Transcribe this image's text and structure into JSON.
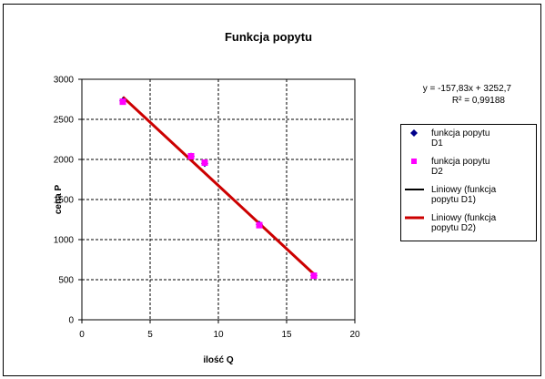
{
  "chart_data": {
    "type": "scatter",
    "title": "Funkcja popytu",
    "xlabel": "ilość Q",
    "ylabel": "cena P",
    "xlim": [
      0,
      20
    ],
    "ylim": [
      0,
      3000
    ],
    "x_ticks": [
      0,
      5,
      10,
      15,
      20
    ],
    "y_ticks": [
      0,
      500,
      1000,
      1500,
      2000,
      2500,
      3000
    ],
    "grid": "dashed",
    "legend_position": "right",
    "series": [
      {
        "name": "funkcja popytu D1",
        "marker": "diamond",
        "color": "#00008b",
        "x": [
          3,
          8,
          9,
          13,
          17
        ],
        "y": [
          2730,
          2040,
          1950,
          1190,
          550
        ]
      },
      {
        "name": "funkcja popytu D2",
        "marker": "square",
        "color": "#ff00ff",
        "x": [
          3,
          8,
          9,
          13,
          17
        ],
        "y": [
          2720,
          2040,
          1960,
          1180,
          550
        ]
      }
    ],
    "trendlines": [
      {
        "name": "Liniowy (funkcja popytu D1)",
        "color": "#000000",
        "slope": -157.83,
        "intercept": 3252.7,
        "x_range": [
          3,
          17
        ]
      },
      {
        "name": "Liniowy (funkcja popytu D2)",
        "color": "#cc0000",
        "slope": -157.83,
        "intercept": 3252.7,
        "x_range": [
          3,
          17
        ]
      }
    ],
    "annotations": {
      "equation": "y = -157,83x + 3252,7",
      "r_squared": "R² = 0,99188"
    },
    "legend": [
      {
        "lines": [
          "funkcja popytu",
          "D1"
        ]
      },
      {
        "lines": [
          "funkcja popytu",
          "D2"
        ]
      },
      {
        "lines": [
          "Liniowy  (funkcja",
          "popytu D1)"
        ]
      },
      {
        "lines": [
          "Liniowy  (funkcja",
          "popytu D2)"
        ]
      }
    ]
  }
}
